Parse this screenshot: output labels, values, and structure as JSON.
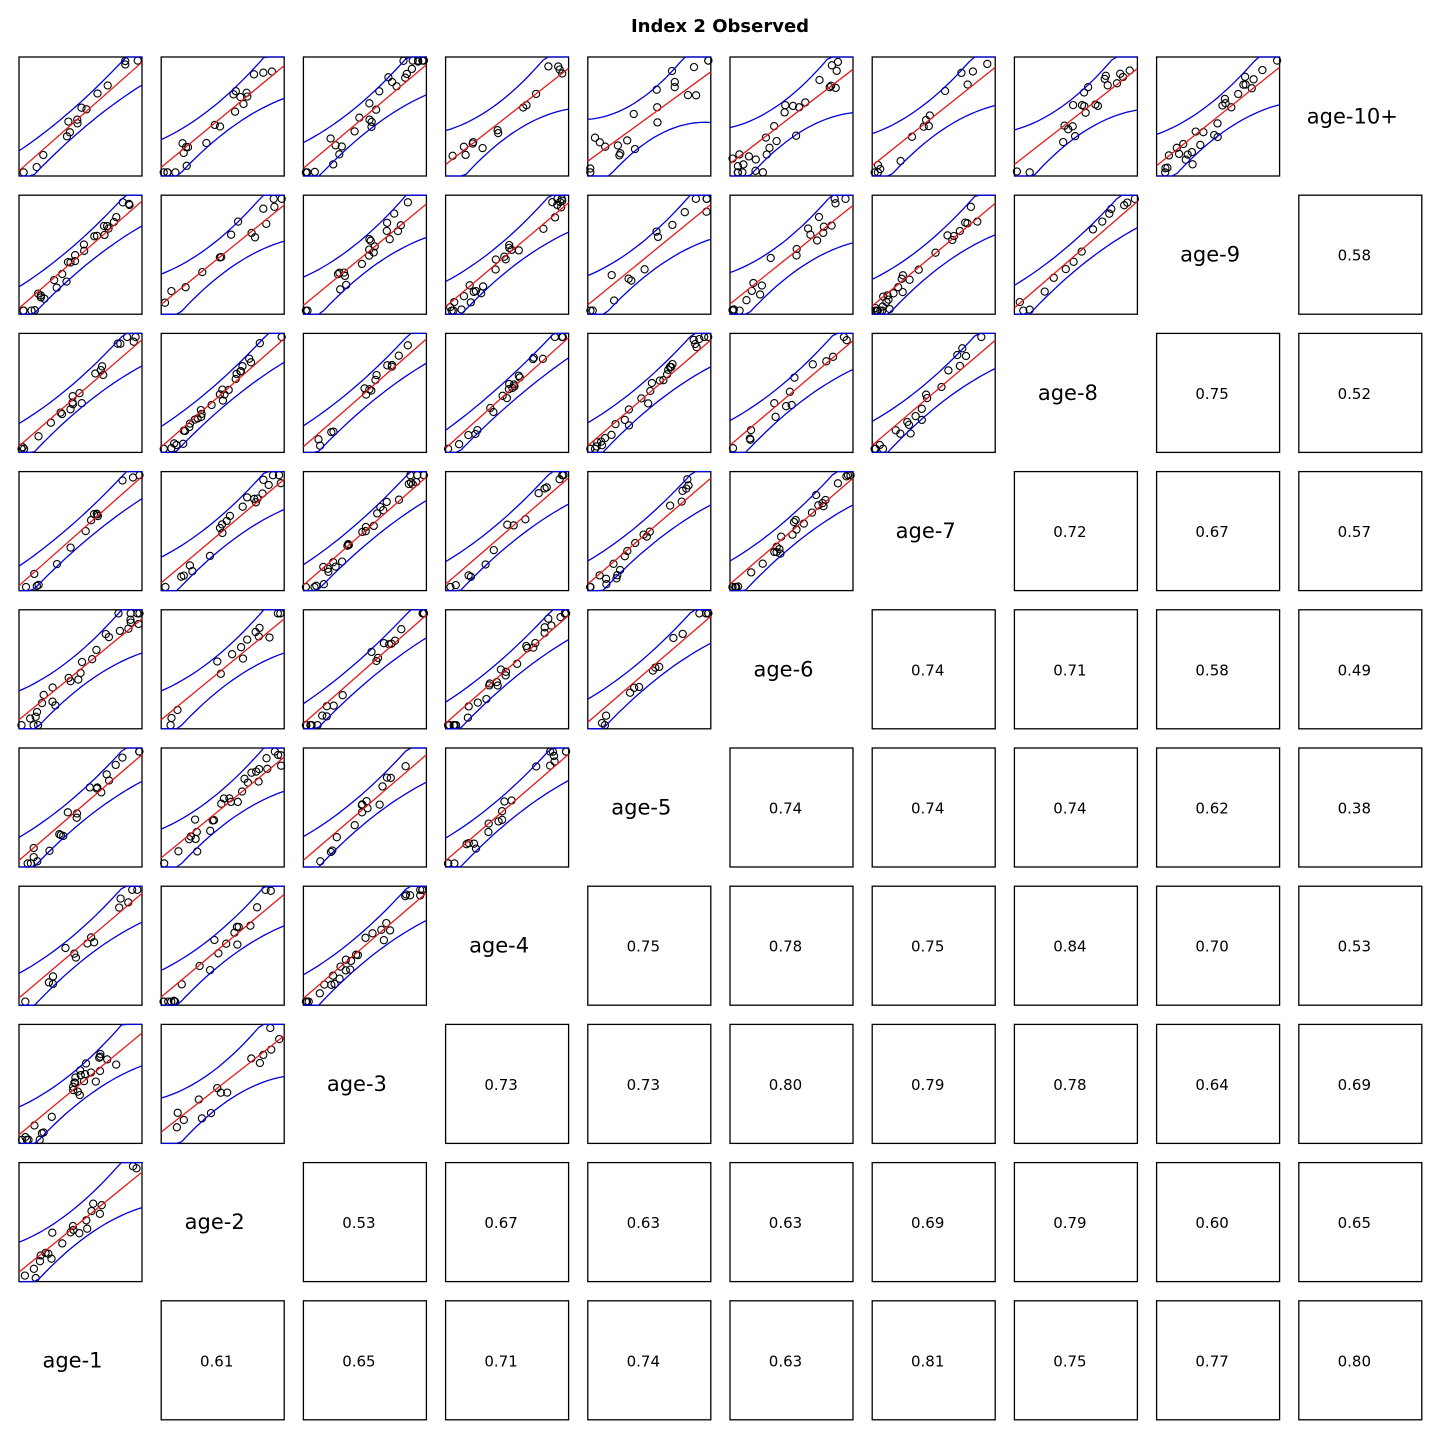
{
  "title": "Index 2 Observed",
  "chart_data": {
    "type": "scatter-matrix",
    "title": "Index 2 Observed",
    "variables": [
      "age-1",
      "age-2",
      "age-3",
      "age-4",
      "age-5",
      "age-6",
      "age-7",
      "age-8",
      "age-9",
      "age-10+"
    ],
    "lower_panels": "scatter points with red regression line and blue confidence bands",
    "upper_panels": "correlation coefficients",
    "correlations": [
      {
        "row": "age-1",
        "col": "age-2",
        "value": "0.61"
      },
      {
        "row": "age-1",
        "col": "age-3",
        "value": "0.65"
      },
      {
        "row": "age-1",
        "col": "age-4",
        "value": "0.71"
      },
      {
        "row": "age-1",
        "col": "age-5",
        "value": "0.74"
      },
      {
        "row": "age-1",
        "col": "age-6",
        "value": "0.63"
      },
      {
        "row": "age-1",
        "col": "age-7",
        "value": "0.81"
      },
      {
        "row": "age-1",
        "col": "age-8",
        "value": "0.75"
      },
      {
        "row": "age-1",
        "col": "age-9",
        "value": "0.77"
      },
      {
        "row": "age-1",
        "col": "age-10+",
        "value": "0.80"
      },
      {
        "row": "age-2",
        "col": "age-3",
        "value": "0.53"
      },
      {
        "row": "age-2",
        "col": "age-4",
        "value": "0.67"
      },
      {
        "row": "age-2",
        "col": "age-5",
        "value": "0.63"
      },
      {
        "row": "age-2",
        "col": "age-6",
        "value": "0.63"
      },
      {
        "row": "age-2",
        "col": "age-7",
        "value": "0.69"
      },
      {
        "row": "age-2",
        "col": "age-8",
        "value": "0.79"
      },
      {
        "row": "age-2",
        "col": "age-9",
        "value": "0.60"
      },
      {
        "row": "age-2",
        "col": "age-10+",
        "value": "0.65"
      },
      {
        "row": "age-3",
        "col": "age-4",
        "value": "0.73"
      },
      {
        "row": "age-3",
        "col": "age-5",
        "value": "0.73"
      },
      {
        "row": "age-3",
        "col": "age-6",
        "value": "0.80"
      },
      {
        "row": "age-3",
        "col": "age-7",
        "value": "0.79"
      },
      {
        "row": "age-3",
        "col": "age-8",
        "value": "0.78"
      },
      {
        "row": "age-3",
        "col": "age-9",
        "value": "0.64"
      },
      {
        "row": "age-3",
        "col": "age-10+",
        "value": "0.69"
      },
      {
        "row": "age-4",
        "col": "age-5",
        "value": "0.75"
      },
      {
        "row": "age-4",
        "col": "age-6",
        "value": "0.78"
      },
      {
        "row": "age-4",
        "col": "age-7",
        "value": "0.75"
      },
      {
        "row": "age-4",
        "col": "age-8",
        "value": "0.84"
      },
      {
        "row": "age-4",
        "col": "age-9",
        "value": "0.70"
      },
      {
        "row": "age-4",
        "col": "age-10+",
        "value": "0.53"
      },
      {
        "row": "age-5",
        "col": "age-6",
        "value": "0.74"
      },
      {
        "row": "age-5",
        "col": "age-7",
        "value": "0.74"
      },
      {
        "row": "age-5",
        "col": "age-8",
        "value": "0.74"
      },
      {
        "row": "age-5",
        "col": "age-9",
        "value": "0.62"
      },
      {
        "row": "age-5",
        "col": "age-10+",
        "value": "0.38"
      },
      {
        "row": "age-6",
        "col": "age-7",
        "value": "0.74"
      },
      {
        "row": "age-6",
        "col": "age-8",
        "value": "0.71"
      },
      {
        "row": "age-6",
        "col": "age-9",
        "value": "0.58"
      },
      {
        "row": "age-6",
        "col": "age-10+",
        "value": "0.49"
      },
      {
        "row": "age-7",
        "col": "age-8",
        "value": "0.72"
      },
      {
        "row": "age-7",
        "col": "age-9",
        "value": "0.67"
      },
      {
        "row": "age-7",
        "col": "age-10+",
        "value": "0.57"
      },
      {
        "row": "age-8",
        "col": "age-9",
        "value": "0.75"
      },
      {
        "row": "age-8",
        "col": "age-10+",
        "value": "0.52"
      },
      {
        "row": "age-9",
        "col": "age-10+",
        "value": "0.58"
      }
    ],
    "colors": {
      "fit_line": "#e41a1c",
      "confidence_band": "#0000dd",
      "points": "#000000"
    }
  }
}
